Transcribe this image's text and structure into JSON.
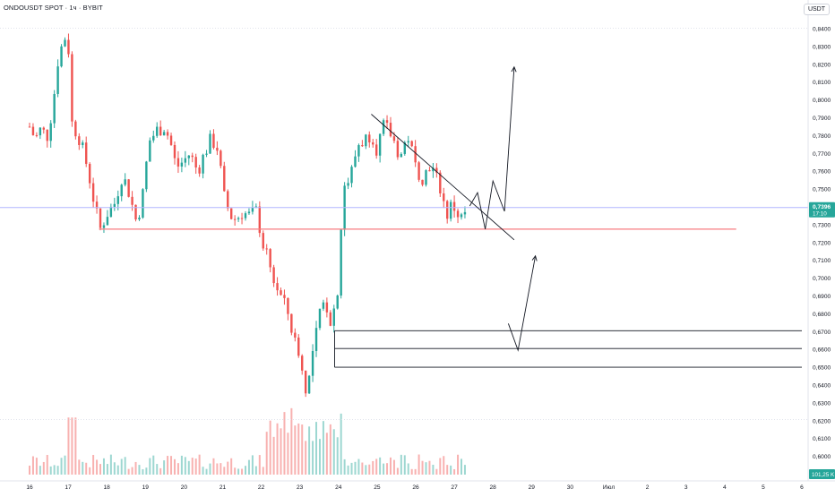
{
  "header": {
    "symbol_title": "ONDOUSDT SPOT · 1ч · BYBIT",
    "currency_button": "USDT"
  },
  "colors": {
    "up": "#26a69a",
    "down": "#ef5350",
    "current_price_line": "#b2b5ff",
    "support_line": "#f77c80",
    "drawings": "#131722",
    "grid": "#d1d4dc",
    "price_badge": "#26a69a",
    "volume_badge": "#26a69a"
  },
  "price_badge": {
    "price": "0,7396",
    "countdown": "17:10"
  },
  "volume_badge": "101,25 K",
  "chart_data": {
    "type": "candlestick",
    "title": "ONDOUSDT SPOT · 1ч · BYBIT",
    "timeframe": "1h",
    "y_axis": {
      "ticks": [
        0.84,
        0.83,
        0.82,
        0.81,
        0.8,
        0.79,
        0.78,
        0.77,
        0.76,
        0.75,
        0.74,
        0.73,
        0.72,
        0.71,
        0.7,
        0.69,
        0.68,
        0.67,
        0.66,
        0.65,
        0.64,
        0.63,
        0.62,
        0.61,
        0.6
      ],
      "tick_labels": [
        "0,8400",
        "0,8300",
        "0,8200",
        "0,8100",
        "0,8000",
        "0,7900",
        "0,7800",
        "0,7700",
        "0,7600",
        "0,7500",
        "0,7400",
        "0,7300",
        "0,7200",
        "0,7100",
        "0,7000",
        "0,6900",
        "0,6800",
        "0,6700",
        "0,6600",
        "0,6500",
        "0,6400",
        "0,6300",
        "0,6200",
        "0,6100",
        "0,6000"
      ],
      "range": [
        0.5955,
        0.8415
      ],
      "unit": "USDT"
    },
    "x_axis": {
      "labels": [
        "16",
        "17",
        "18",
        "19",
        "20",
        "21",
        "22",
        "23",
        "24",
        "25",
        "26",
        "27",
        "28",
        "29",
        "30",
        "Июл",
        "2",
        "3",
        "4",
        "5",
        "6"
      ],
      "day_index": [
        0,
        1,
        2,
        3,
        4,
        5,
        6,
        7,
        8,
        9,
        10,
        11,
        12,
        13,
        14,
        15,
        16,
        17,
        18,
        19,
        20
      ]
    },
    "price_path": [
      [
        0,
        0.785
      ],
      [
        0.15,
        0.778
      ],
      [
        0.3,
        0.784
      ],
      [
        0.45,
        0.779
      ],
      [
        0.6,
        0.796
      ],
      [
        0.75,
        0.825
      ],
      [
        0.88,
        0.833
      ],
      [
        0.97,
        0.838
      ],
      [
        1.02,
        0.825
      ],
      [
        1.1,
        0.787
      ],
      [
        1.3,
        0.778
      ],
      [
        1.5,
        0.762
      ],
      [
        1.65,
        0.745
      ],
      [
        1.82,
        0.727
      ],
      [
        2.0,
        0.736
      ],
      [
        2.2,
        0.742
      ],
      [
        2.4,
        0.758
      ],
      [
        2.55,
        0.75
      ],
      [
        2.75,
        0.733
      ],
      [
        2.9,
        0.741
      ],
      [
        3.0,
        0.76
      ],
      [
        3.1,
        0.777
      ],
      [
        3.3,
        0.783
      ],
      [
        3.5,
        0.785
      ],
      [
        3.65,
        0.776
      ],
      [
        3.8,
        0.762
      ],
      [
        4.0,
        0.766
      ],
      [
        4.15,
        0.77
      ],
      [
        4.35,
        0.76
      ],
      [
        4.55,
        0.771
      ],
      [
        4.7,
        0.778
      ],
      [
        4.9,
        0.772
      ],
      [
        5.0,
        0.748
      ],
      [
        5.2,
        0.735
      ],
      [
        5.35,
        0.733
      ],
      [
        5.5,
        0.737
      ],
      [
        5.7,
        0.735
      ],
      [
        5.9,
        0.738
      ],
      [
        6.0,
        0.722
      ],
      [
        6.15,
        0.712
      ],
      [
        6.3,
        0.7
      ],
      [
        6.5,
        0.69
      ],
      [
        6.7,
        0.68
      ],
      [
        6.85,
        0.665
      ],
      [
        7.0,
        0.658
      ],
      [
        7.1,
        0.64
      ],
      [
        7.2,
        0.638
      ],
      [
        7.35,
        0.66
      ],
      [
        7.5,
        0.678
      ],
      [
        7.65,
        0.688
      ],
      [
        7.8,
        0.676
      ],
      [
        7.95,
        0.688
      ],
      [
        8.0,
        0.7
      ],
      [
        8.05,
        0.722
      ],
      [
        8.1,
        0.742
      ],
      [
        8.15,
        0.752
      ],
      [
        8.3,
        0.756
      ],
      [
        8.5,
        0.775
      ],
      [
        8.7,
        0.778
      ],
      [
        8.85,
        0.782
      ],
      [
        9.0,
        0.772
      ],
      [
        9.15,
        0.785
      ],
      [
        9.3,
        0.783
      ],
      [
        9.45,
        0.776
      ],
      [
        9.6,
        0.768
      ],
      [
        9.8,
        0.78
      ],
      [
        10.0,
        0.762
      ],
      [
        10.2,
        0.756
      ],
      [
        10.35,
        0.764
      ],
      [
        10.5,
        0.758
      ],
      [
        10.65,
        0.75
      ],
      [
        10.8,
        0.735
      ],
      [
        10.95,
        0.742
      ],
      [
        11.05,
        0.737
      ],
      [
        11.2,
        0.733
      ],
      [
        11.35,
        0.74
      ]
    ],
    "current_price": 0.7396,
    "current_price_label": "0,7396",
    "support_level": 0.7275,
    "drawings": {
      "upper_trendline": [
        [
          8.85,
          0.792
        ],
        [
          12.55,
          0.7215
        ]
      ],
      "projection_up": [
        [
          11.4,
          0.7405
        ],
        [
          11.6,
          0.748
        ],
        [
          11.8,
          0.7275
        ],
        [
          12.0,
          0.7545
        ],
        [
          12.3,
          0.7375
        ],
        [
          12.55,
          0.8185
        ]
      ],
      "projection_down": [
        [
          12.4,
          0.6745
        ],
        [
          12.65,
          0.6595
        ],
        [
          13.1,
          0.7125
        ]
      ],
      "levels": [
        {
          "y": 0.6705,
          "from": 7.9,
          "to": 20.0
        },
        {
          "y": 0.6605,
          "from": 7.9,
          "to": 20.0
        },
        {
          "y": 0.65,
          "from": 7.9,
          "to": 20.0
        }
      ]
    },
    "volume": {
      "max_label": "101,25 K",
      "bars_seed": 7
    },
    "grid": false,
    "legend": "none"
  }
}
